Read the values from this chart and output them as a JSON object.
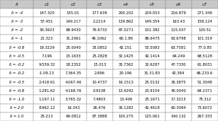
{
  "headers": [
    "δ",
    "c1",
    "c2",
    "c3",
    "c4",
    "c5",
    "c6",
    "c7"
  ],
  "rows": [
    [
      "δ = -4",
      "147.320",
      "155.01",
      "177.639",
      "200.202",
      "229.053",
      "216.879",
      "271.349"
    ],
    [
      "δ = -3",
      "57.451",
      "149.217",
      "2.2214",
      "139.862",
      "149.354",
      "163.43",
      "158.124"
    ],
    [
      "δ = -2",
      "50.3623",
      "68.9430",
      "76.6733",
      "87.0271",
      "101.382",
      "115.037",
      "130.51"
    ],
    [
      "δ = -1",
      "21.323",
      "31.2061",
      "46.1062",
      "60.1.86",
      "86.6475",
      "63.6798",
      "101.319"
    ],
    [
      "δ = -0.8",
      "19.3229",
      "25.0040",
      "33.0852",
      "42.151",
      "53.5083",
      "63.7581",
      "77.0.85"
    ],
    [
      "δ = -0.5",
      "7.196",
      "15.1633",
      "25.2828",
      "32.1425",
      "42.1414",
      "64.249",
      "68.5128"
    ],
    [
      "δ = -0.2",
      "9.559.32",
      "18.2352",
      "15.013",
      "35.7362",
      "32.6287",
      "47.7330",
      "61.8031"
    ],
    [
      "δ = -0.2",
      "-1.09.13",
      "7.364.35",
      "2.896",
      "20.196",
      "31.31.83",
      "42.384",
      "66.233.6"
    ],
    [
      "δ = -0.5",
      "2.418.61",
      "4.067.46",
      "10.4737",
      "16.1513",
      "25.0132",
      "36.3875",
      "51.3048"
    ],
    [
      "δ = -0.8",
      "1.281.62",
      "4.168.76",
      "0.9238",
      "13.9292",
      "23.9154",
      "40.0040",
      "64.2371"
    ],
    [
      "δ = -1.0",
      "1.167.11",
      "3.765.32",
      "7.4803",
      "13.406",
      "25.1671",
      "17.3215",
      "75.312"
    ],
    [
      "δ = 2.0",
      "8.962.12",
      "16.343",
      "26.476",
      "36.1282",
      "42.4618",
      "60.3094",
      "73.6072"
    ],
    [
      "δ = 1.0",
      "25.213",
      "69.0812",
      "87.3888",
      "100.275",
      "125.061",
      "146.132",
      "267.333"
    ]
  ],
  "header_bg": "#c8c8c8",
  "row_bg_odd": "#ffffff",
  "row_bg_even": "#ffffff",
  "font_size": 3.8,
  "header_font_size": 4.2,
  "fig_bg": "#f0f0f0",
  "edge_color": "#888888",
  "edge_lw": 0.3
}
